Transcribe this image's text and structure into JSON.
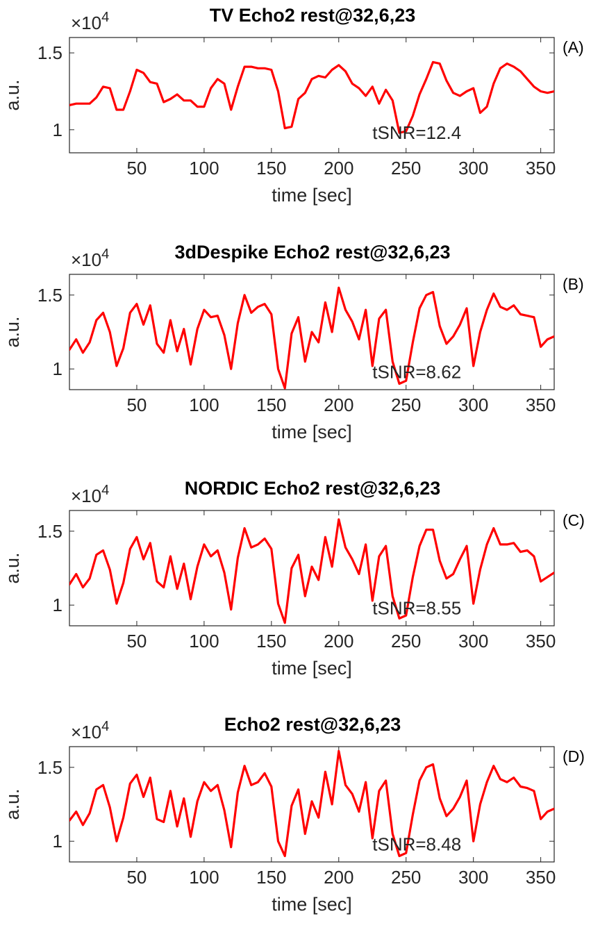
{
  "chart_data": [
    {
      "type": "line",
      "panel_label": "(A)",
      "title": "TV Echo2 rest@32,6,23",
      "xlabel": "time [sec]",
      "ylabel": "a.u.",
      "exponent_label": "×10",
      "exponent_power": "4",
      "annotation": "tSNR=12.4",
      "annotation_x": 225,
      "annotation_y": 0.98,
      "xlim": [
        0,
        360
      ],
      "ylim": [
        0.85,
        1.6
      ],
      "xticks": [
        50,
        100,
        150,
        200,
        250,
        300,
        350
      ],
      "yticks": [
        1,
        1.5
      ],
      "ytick_labels": [
        "1",
        "1.5"
      ],
      "color": "#ff0000",
      "x": [
        0,
        5,
        10,
        15,
        20,
        25,
        30,
        35,
        40,
        45,
        50,
        55,
        60,
        65,
        70,
        75,
        80,
        85,
        90,
        95,
        100,
        105,
        110,
        115,
        120,
        125,
        130,
        135,
        140,
        145,
        150,
        155,
        160,
        165,
        170,
        175,
        180,
        185,
        190,
        195,
        200,
        205,
        210,
        215,
        220,
        225,
        230,
        235,
        240,
        245,
        250,
        255,
        260,
        265,
        270,
        275,
        280,
        285,
        290,
        295,
        300,
        305,
        310,
        315,
        320,
        325,
        330,
        335,
        340,
        345,
        350,
        355,
        360
      ],
      "values": [
        1.16,
        1.17,
        1.17,
        1.17,
        1.21,
        1.28,
        1.27,
        1.13,
        1.13,
        1.25,
        1.39,
        1.37,
        1.31,
        1.3,
        1.18,
        1.2,
        1.23,
        1.19,
        1.19,
        1.15,
        1.15,
        1.27,
        1.33,
        1.3,
        1.13,
        1.28,
        1.41,
        1.41,
        1.4,
        1.4,
        1.39,
        1.25,
        1.01,
        1.02,
        1.2,
        1.24,
        1.33,
        1.35,
        1.34,
        1.39,
        1.42,
        1.38,
        1.3,
        1.27,
        1.22,
        1.28,
        1.17,
        1.26,
        1.19,
        0.98,
        0.99,
        1.09,
        1.23,
        1.33,
        1.44,
        1.43,
        1.32,
        1.24,
        1.22,
        1.25,
        1.27,
        1.11,
        1.15,
        1.3,
        1.4,
        1.43,
        1.41,
        1.38,
        1.33,
        1.28,
        1.25,
        1.24,
        1.25
      ]
    },
    {
      "type": "line",
      "panel_label": "(B)",
      "title": "3dDespike Echo2 rest@32,6,23",
      "xlabel": "time [sec]",
      "ylabel": "a.u.",
      "exponent_label": "×10",
      "exponent_power": "4",
      "annotation": "tSNR=8.62",
      "annotation_x": 225,
      "annotation_y": 0.98,
      "xlim": [
        0,
        360
      ],
      "ylim": [
        0.86,
        1.64
      ],
      "xticks": [
        50,
        100,
        150,
        200,
        250,
        300,
        350
      ],
      "yticks": [
        1,
        1.5
      ],
      "ytick_labels": [
        "1",
        "1.5"
      ],
      "color": "#ff0000",
      "x": [
        0,
        5,
        10,
        15,
        20,
        25,
        30,
        35,
        40,
        45,
        50,
        55,
        60,
        65,
        70,
        75,
        80,
        85,
        90,
        95,
        100,
        105,
        110,
        115,
        120,
        125,
        130,
        135,
        140,
        145,
        150,
        155,
        160,
        165,
        170,
        175,
        180,
        185,
        190,
        195,
        200,
        205,
        210,
        215,
        220,
        225,
        230,
        235,
        240,
        245,
        250,
        255,
        260,
        265,
        270,
        275,
        280,
        285,
        290,
        295,
        300,
        305,
        310,
        315,
        320,
        325,
        330,
        335,
        340,
        345,
        350,
        355,
        360
      ],
      "values": [
        1.13,
        1.2,
        1.11,
        1.18,
        1.33,
        1.38,
        1.25,
        1.02,
        1.14,
        1.38,
        1.44,
        1.3,
        1.43,
        1.17,
        1.11,
        1.33,
        1.12,
        1.27,
        1.03,
        1.27,
        1.4,
        1.35,
        1.36,
        1.23,
        1.0,
        1.31,
        1.5,
        1.38,
        1.42,
        1.44,
        1.37,
        1.0,
        0.87,
        1.24,
        1.35,
        1.05,
        1.25,
        1.18,
        1.45,
        1.25,
        1.55,
        1.4,
        1.32,
        1.2,
        1.4,
        1.02,
        1.34,
        1.4,
        1.05,
        0.9,
        0.92,
        1.18,
        1.41,
        1.5,
        1.52,
        1.29,
        1.17,
        1.22,
        1.3,
        1.41,
        1.02,
        1.25,
        1.4,
        1.51,
        1.42,
        1.4,
        1.43,
        1.37,
        1.36,
        1.35,
        1.15,
        1.2,
        1.22
      ]
    },
    {
      "type": "line",
      "panel_label": "(C)",
      "title": "NORDIC Echo2 rest@32,6,23",
      "xlabel": "time [sec]",
      "ylabel": "a.u.",
      "exponent_label": "×10",
      "exponent_power": "4",
      "annotation": "tSNR=8.55",
      "annotation_x": 225,
      "annotation_y": 0.98,
      "xlim": [
        0,
        360
      ],
      "ylim": [
        0.86,
        1.64
      ],
      "xticks": [
        50,
        100,
        150,
        200,
        250,
        300,
        350
      ],
      "yticks": [
        1,
        1.5
      ],
      "ytick_labels": [
        "1",
        "1.5"
      ],
      "color": "#ff0000",
      "x": [
        0,
        5,
        10,
        15,
        20,
        25,
        30,
        35,
        40,
        45,
        50,
        55,
        60,
        65,
        70,
        75,
        80,
        85,
        90,
        95,
        100,
        105,
        110,
        115,
        120,
        125,
        130,
        135,
        140,
        145,
        150,
        155,
        160,
        165,
        170,
        175,
        180,
        185,
        190,
        195,
        200,
        205,
        210,
        215,
        220,
        225,
        230,
        235,
        240,
        245,
        250,
        255,
        260,
        265,
        270,
        275,
        280,
        285,
        290,
        295,
        300,
        305,
        310,
        315,
        320,
        325,
        330,
        335,
        340,
        345,
        350,
        355,
        360
      ],
      "values": [
        1.14,
        1.21,
        1.12,
        1.18,
        1.34,
        1.37,
        1.24,
        1.01,
        1.15,
        1.38,
        1.46,
        1.31,
        1.42,
        1.16,
        1.12,
        1.33,
        1.11,
        1.28,
        1.04,
        1.26,
        1.41,
        1.33,
        1.37,
        1.22,
        0.97,
        1.32,
        1.52,
        1.39,
        1.41,
        1.45,
        1.38,
        1.01,
        0.88,
        1.25,
        1.34,
        1.06,
        1.26,
        1.17,
        1.46,
        1.26,
        1.58,
        1.39,
        1.31,
        1.21,
        1.41,
        1.03,
        1.33,
        1.4,
        1.06,
        0.91,
        0.93,
        1.19,
        1.4,
        1.51,
        1.51,
        1.3,
        1.18,
        1.21,
        1.31,
        1.4,
        1.01,
        1.24,
        1.41,
        1.52,
        1.41,
        1.41,
        1.42,
        1.36,
        1.37,
        1.33,
        1.16,
        1.19,
        1.22
      ]
    },
    {
      "type": "line",
      "panel_label": "(D)",
      "title": "Echo2 rest@32,6,23",
      "xlabel": "time [sec]",
      "ylabel": "a.u.",
      "exponent_label": "×10",
      "exponent_power": "4",
      "annotation": "tSNR=8.48",
      "annotation_x": 225,
      "annotation_y": 0.98,
      "xlim": [
        0,
        360
      ],
      "ylim": [
        0.86,
        1.64
      ],
      "xticks": [
        50,
        100,
        150,
        200,
        250,
        300,
        350
      ],
      "yticks": [
        1,
        1.5
      ],
      "ytick_labels": [
        "1",
        "1.5"
      ],
      "color": "#ff0000",
      "x": [
        0,
        5,
        10,
        15,
        20,
        25,
        30,
        35,
        40,
        45,
        50,
        55,
        60,
        65,
        70,
        75,
        80,
        85,
        90,
        95,
        100,
        105,
        110,
        115,
        120,
        125,
        130,
        135,
        140,
        145,
        150,
        155,
        160,
        165,
        170,
        175,
        180,
        185,
        190,
        195,
        200,
        205,
        210,
        215,
        220,
        225,
        230,
        235,
        240,
        245,
        250,
        255,
        260,
        265,
        270,
        275,
        280,
        285,
        290,
        295,
        300,
        305,
        310,
        315,
        320,
        325,
        330,
        335,
        340,
        345,
        350,
        355,
        360
      ],
      "values": [
        1.14,
        1.2,
        1.11,
        1.19,
        1.35,
        1.38,
        1.23,
        1.0,
        1.16,
        1.39,
        1.45,
        1.3,
        1.43,
        1.15,
        1.13,
        1.34,
        1.1,
        1.29,
        1.03,
        1.27,
        1.4,
        1.34,
        1.38,
        1.21,
        0.96,
        1.33,
        1.51,
        1.38,
        1.4,
        1.46,
        1.37,
        1.0,
        0.9,
        1.24,
        1.35,
        1.05,
        1.27,
        1.16,
        1.47,
        1.25,
        1.61,
        1.38,
        1.32,
        1.2,
        1.4,
        1.02,
        1.34,
        1.41,
        1.05,
        0.9,
        0.92,
        1.18,
        1.41,
        1.5,
        1.52,
        1.29,
        1.17,
        1.22,
        1.3,
        1.41,
        1.0,
        1.25,
        1.4,
        1.51,
        1.42,
        1.4,
        1.43,
        1.37,
        1.36,
        1.34,
        1.15,
        1.2,
        1.22
      ]
    }
  ]
}
